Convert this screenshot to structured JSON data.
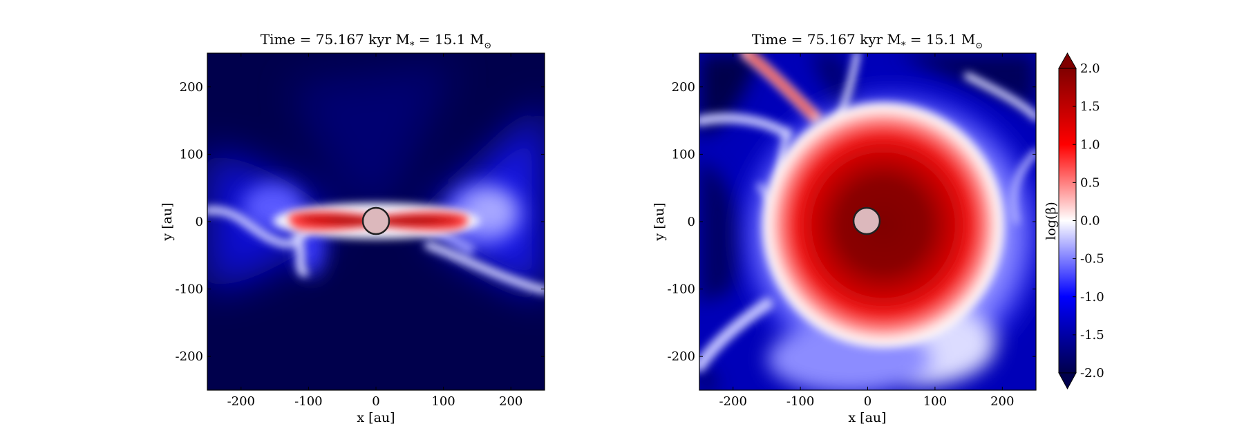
{
  "chart_data": [
    {
      "type": "heatmap",
      "title": "Time = 75.167 kyr    M",
      "title_sub": "*",
      "title_eq": " = 15.1 M",
      "title_sun": "⊙",
      "xlabel": "x [au]",
      "ylabel": "y [au]",
      "xlim": [
        -250,
        250
      ],
      "ylim": [
        -250,
        250
      ],
      "xticks": [
        -200,
        -100,
        0,
        100,
        200
      ],
      "yticks": [
        -200,
        -100,
        0,
        100,
        200
      ],
      "view": "edge-on",
      "star": {
        "x": 0,
        "y": 0,
        "r": 20
      },
      "features": "thin disk of high log(beta) along y=0 from x≈-130 to x≈130, bipolar low-beta outflow cavities"
    },
    {
      "type": "heatmap",
      "title": "Time = 75.167 kyr    M",
      "title_sub": "*",
      "title_eq": " = 15.1 M",
      "title_sun": "⊙",
      "xlabel": "x [au]",
      "ylabel": "y [au]",
      "xlim": [
        -250,
        250
      ],
      "ylim": [
        -250,
        250
      ],
      "xticks": [
        -200,
        -100,
        0,
        100,
        200
      ],
      "yticks": [
        -200,
        -100,
        0,
        100,
        200
      ],
      "view": "face-on",
      "star": {
        "x": 0,
        "y": 0,
        "r": 20
      },
      "features": "large high log(beta) disk centered near (40,0) with radius ≈150 au"
    }
  ],
  "colorbar": {
    "label": "log(β)",
    "min": -2.0,
    "max": 2.0,
    "ticks": [
      "2.0",
      "1.5",
      "1.0",
      "0.5",
      "0.0",
      "-0.5",
      "-1.0",
      "-1.5",
      "-2.0"
    ],
    "colormap": "seismic",
    "low_color": "#00004c",
    "high_color": "#800000"
  }
}
